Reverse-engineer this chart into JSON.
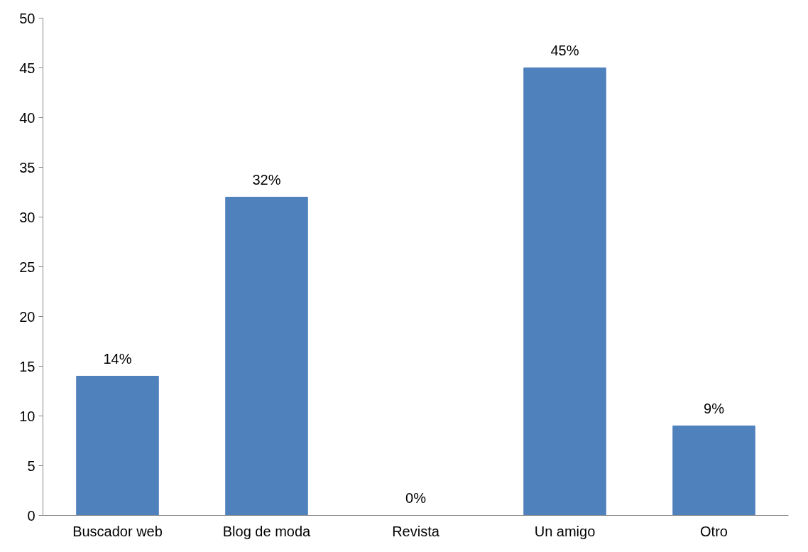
{
  "chart_data": {
    "type": "bar",
    "categories": [
      "Buscador web",
      "Blog de moda",
      "Revista",
      "Un amigo",
      "Otro"
    ],
    "values": [
      14,
      32,
      0,
      45,
      9
    ],
    "color": "#4f81bd",
    "value_labels": [
      "14%",
      "32%",
      "0%",
      "45%",
      "9%"
    ],
    "ylim": [
      0,
      50
    ],
    "yticks": [
      0,
      5,
      10,
      15,
      20,
      25,
      30,
      35,
      40,
      45,
      50
    ],
    "grid": false
  }
}
